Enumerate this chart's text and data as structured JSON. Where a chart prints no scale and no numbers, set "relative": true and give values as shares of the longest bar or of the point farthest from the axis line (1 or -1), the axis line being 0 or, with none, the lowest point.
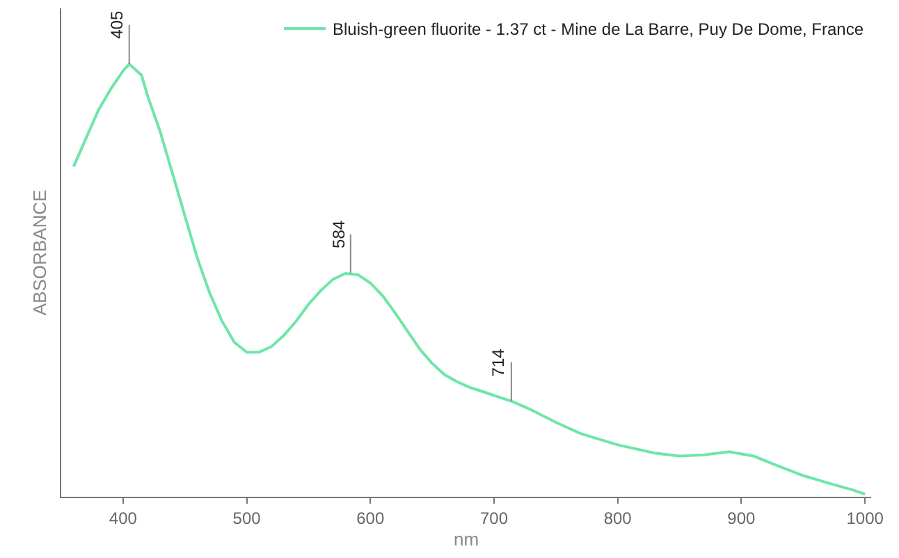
{
  "chart_data": {
    "type": "line",
    "xlabel": "nm",
    "ylabel": "ABSORBANCE",
    "relative": true,
    "x": [
      360,
      370,
      380,
      390,
      400,
      405,
      415,
      420,
      430,
      440,
      450,
      460,
      470,
      480,
      490,
      500,
      510,
      520,
      530,
      540,
      550,
      560,
      570,
      580,
      590,
      600,
      610,
      620,
      630,
      640,
      650,
      660,
      670,
      680,
      690,
      700,
      714,
      730,
      750,
      770,
      800,
      830,
      850,
      870,
      890,
      910,
      930,
      950,
      970,
      990,
      1000
    ],
    "series": [
      {
        "name": "Bluish-green fluorite - 1.37 ct - Mine de La Barre, Puy De Dome, France",
        "color": "#6ee6a8",
        "values": [
          0.763,
          0.828,
          0.893,
          0.942,
          0.984,
          1.0,
          0.974,
          0.925,
          0.844,
          0.747,
          0.649,
          0.552,
          0.471,
          0.406,
          0.357,
          0.334,
          0.334,
          0.347,
          0.373,
          0.406,
          0.445,
          0.477,
          0.503,
          0.516,
          0.513,
          0.494,
          0.464,
          0.425,
          0.383,
          0.341,
          0.308,
          0.282,
          0.266,
          0.253,
          0.244,
          0.234,
          0.221,
          0.201,
          0.172,
          0.146,
          0.12,
          0.101,
          0.094,
          0.097,
          0.104,
          0.094,
          0.071,
          0.049,
          0.032,
          0.016,
          0.006
        ]
      }
    ],
    "xlim": [
      350,
      1005
    ],
    "xticks": [
      400,
      500,
      600,
      700,
      800,
      900,
      1000
    ],
    "annotations": [
      {
        "text": "405",
        "x": 405,
        "y": 1.0
      },
      {
        "text": "584",
        "x": 584,
        "y": 0.516
      },
      {
        "text": "714",
        "x": 714,
        "y": 0.221
      }
    ],
    "legend": "top right",
    "line_style": "solid",
    "marker": "none"
  }
}
